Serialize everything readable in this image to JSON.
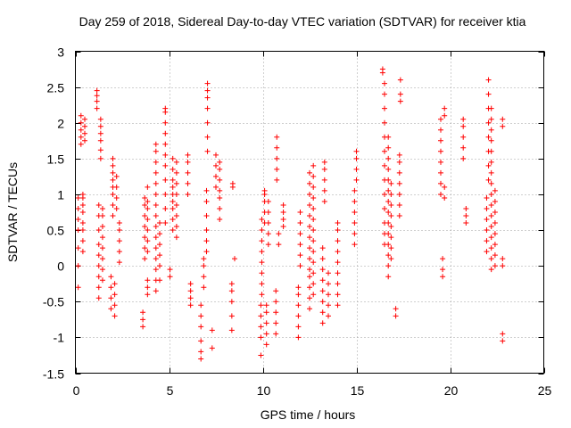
{
  "chart_data": {
    "type": "scatter",
    "title": "Day 259 of 2018, Sidereal Day-to-day VTEC variation (SDTVAR) for receiver ktia",
    "xlabel": "GPS time / hours",
    "ylabel": "SDTVAR / TECUs",
    "xlim": [
      0,
      25
    ],
    "ylim": [
      -1.5,
      3
    ],
    "xticks": [
      0,
      5,
      10,
      15,
      20,
      25
    ],
    "xtick_labels": [
      "0",
      "5",
      "10",
      "15",
      "20",
      "25"
    ],
    "yticks": [
      -1.5,
      -1,
      -0.5,
      0,
      0.5,
      1,
      1.5,
      2,
      2.5,
      3
    ],
    "ytick_labels": [
      "-1.5",
      "-1",
      "-0.5",
      "0",
      "0.5",
      "1",
      "1.5",
      "2",
      "2.5",
      "3"
    ],
    "grid": true,
    "marker": "+",
    "color": "#ff0000",
    "clusters": [
      {
        "x": 0.15,
        "y": [
          -0.3,
          0.0,
          0.25,
          0.5,
          0.65,
          0.8,
          0.95
        ]
      },
      {
        "x": 0.3,
        "y": [
          1.7,
          1.8,
          1.9,
          2.0,
          2.1
        ]
      },
      {
        "x": 0.4,
        "y": [
          0.2,
          0.35,
          0.5,
          0.6,
          0.75,
          0.85,
          0.95,
          1.0
        ]
      },
      {
        "x": 0.5,
        "y": [
          1.75,
          1.85,
          1.95,
          2.05
        ]
      },
      {
        "x": 1.15,
        "y": [
          2.2,
          2.3,
          2.38,
          2.45
        ]
      },
      {
        "x": 1.25,
        "y": [
          -0.45,
          -0.3,
          -0.15,
          0.0,
          0.15,
          0.3,
          0.5,
          0.7,
          0.85
        ]
      },
      {
        "x": 1.35,
        "y": [
          1.5,
          1.62,
          1.75,
          1.85,
          1.95,
          2.05
        ]
      },
      {
        "x": 1.45,
        "y": [
          -0.2,
          -0.05,
          0.1,
          0.25,
          0.4,
          0.55,
          0.7,
          0.8
        ]
      },
      {
        "x": 1.9,
        "y": [
          -0.6,
          -0.45,
          -0.3,
          -0.15
        ]
      },
      {
        "x": 2.0,
        "y": [
          0.7,
          0.85,
          1.0,
          1.1,
          1.2,
          1.3,
          1.4,
          1.5
        ]
      },
      {
        "x": 2.1,
        "y": [
          -0.7,
          -0.55,
          -0.4,
          -0.25
        ]
      },
      {
        "x": 2.2,
        "y": [
          0.8,
          0.95,
          1.1,
          1.25
        ]
      },
      {
        "x": 2.35,
        "y": [
          0.05,
          0.2,
          0.35,
          0.5,
          0.6
        ]
      },
      {
        "x": 3.6,
        "y": [
          -0.85,
          -0.75,
          -0.65
        ]
      },
      {
        "x": 3.7,
        "y": [
          0.1,
          0.25,
          0.4,
          0.55,
          0.7,
          0.85,
          0.95
        ]
      },
      {
        "x": 3.85,
        "y": [
          -0.4,
          -0.3,
          -0.2,
          0.2,
          0.35,
          0.5,
          0.65,
          0.8,
          0.9,
          1.1
        ]
      },
      {
        "x": 4.3,
        "y": [
          -0.35,
          -0.2,
          -0.05,
          0.1,
          0.25,
          0.4,
          0.55,
          0.7,
          0.85,
          1.0,
          1.15,
          1.3,
          1.45,
          1.6,
          1.7
        ]
      },
      {
        "x": 4.5,
        "y": [
          -0.2,
          0.0,
          0.15,
          0.3,
          0.45,
          0.6
        ]
      },
      {
        "x": 4.8,
        "y": [
          0.6,
          0.8,
          1.0,
          1.2,
          1.4,
          1.55,
          1.7,
          1.85,
          2.0,
          2.15,
          2.2
        ]
      },
      {
        "x": 5.05,
        "y": [
          -0.15,
          -0.05
        ]
      },
      {
        "x": 5.2,
        "y": [
          0.5,
          0.65,
          0.8,
          0.9,
          1.0,
          1.1,
          1.2,
          1.35,
          1.5
        ]
      },
      {
        "x": 5.4,
        "y": [
          0.4,
          0.55,
          0.7,
          0.85,
          1.0,
          1.15,
          1.3,
          1.45
        ]
      },
      {
        "x": 6.0,
        "y": [
          1.0,
          1.15,
          1.3,
          1.45,
          1.55
        ]
      },
      {
        "x": 6.15,
        "y": [
          -0.55,
          -0.45,
          -0.35,
          -0.25
        ]
      },
      {
        "x": 6.7,
        "y": [
          -1.3,
          -1.2,
          -1.05,
          -0.85,
          -0.7,
          -0.55
        ]
      },
      {
        "x": 6.85,
        "y": [
          -0.3,
          -0.15,
          0.0,
          0.1
        ]
      },
      {
        "x": 7.0,
        "y": [
          0.2,
          0.35,
          0.5,
          0.7,
          0.9,
          1.05
        ]
      },
      {
        "x": 7.05,
        "y": [
          1.6,
          1.8,
          2.0,
          2.2,
          2.35,
          2.45,
          2.55
        ]
      },
      {
        "x": 7.3,
        "y": [
          -1.15,
          -0.9
        ]
      },
      {
        "x": 7.5,
        "y": [
          1.1,
          1.25,
          1.4,
          1.55
        ]
      },
      {
        "x": 7.7,
        "y": [
          0.65,
          0.8,
          0.95,
          1.05,
          1.2,
          1.35,
          1.45
        ]
      },
      {
        "x": 8.35,
        "y": [
          -0.9,
          -0.7,
          -0.5,
          -0.35,
          -0.25
        ]
      },
      {
        "x": 8.4,
        "y": [
          1.1,
          1.15
        ]
      },
      {
        "x": 8.5,
        "y": [
          0.1
        ]
      },
      {
        "x": 9.9,
        "y": [
          -1.25,
          -1.0,
          -0.85,
          -0.7,
          -0.55
        ]
      },
      {
        "x": 9.95,
        "y": [
          -0.4,
          -0.25,
          -0.1,
          0.05,
          0.2,
          0.35,
          0.5,
          0.65
        ]
      },
      {
        "x": 10.1,
        "y": [
          0.6,
          0.75,
          0.9,
          1.0,
          1.05
        ]
      },
      {
        "x": 10.2,
        "y": [
          -1.1,
          -0.95,
          -0.8,
          -0.65,
          -0.55
        ]
      },
      {
        "x": 10.3,
        "y": [
          0.3,
          0.45,
          0.6,
          0.75,
          0.9
        ]
      },
      {
        "x": 10.7,
        "y": [
          -0.95,
          -0.8,
          -0.65,
          -0.5,
          -0.35
        ]
      },
      {
        "x": 10.75,
        "y": [
          1.2,
          1.35,
          1.5,
          1.65,
          1.8
        ]
      },
      {
        "x": 10.85,
        "y": [
          0.3,
          0.45
        ]
      },
      {
        "x": 11.1,
        "y": [
          0.55,
          0.65,
          0.75,
          0.85
        ]
      },
      {
        "x": 11.9,
        "y": [
          -1.0,
          -0.85,
          -0.7,
          -0.55,
          -0.4,
          -0.3
        ]
      },
      {
        "x": 12.0,
        "y": [
          0.0,
          0.15,
          0.3,
          0.45,
          0.6,
          0.75
        ]
      },
      {
        "x": 12.5,
        "y": [
          -0.6,
          -0.45,
          -0.3,
          -0.15,
          -0.05,
          0.1,
          0.25,
          0.4,
          0.55,
          0.7,
          0.85,
          1.0,
          1.15,
          1.3
        ]
      },
      {
        "x": 12.7,
        "y": [
          -0.4,
          -0.25,
          -0.1,
          0.05,
          0.2,
          0.35,
          0.5,
          0.65,
          0.8,
          0.95,
          1.1,
          1.25,
          1.4
        ]
      },
      {
        "x": 13.2,
        "y": [
          -0.8,
          -0.65,
          -0.5,
          -0.35,
          -0.2,
          -0.05,
          0.1,
          0.25
        ]
      },
      {
        "x": 13.3,
        "y": [
          0.9,
          1.05,
          1.2,
          1.35,
          1.45
        ]
      },
      {
        "x": 13.5,
        "y": [
          -0.7,
          -0.55,
          -0.4,
          -0.25,
          -0.1
        ]
      },
      {
        "x": 14.0,
        "y": [
          -0.55,
          -0.4,
          -0.25,
          -0.1,
          0.05,
          0.2,
          0.35,
          0.5,
          0.6
        ]
      },
      {
        "x": 14.9,
        "y": [
          0.3,
          0.45,
          0.6,
          0.75,
          0.9,
          1.05
        ]
      },
      {
        "x": 15.0,
        "y": [
          1.2,
          1.35,
          1.5,
          1.6
        ]
      },
      {
        "x": 16.4,
        "y": [
          2.7,
          2.75
        ]
      },
      {
        "x": 16.5,
        "y": [
          0.3,
          0.45,
          0.6,
          0.8,
          1.0,
          1.2,
          1.4,
          1.6,
          1.8,
          2.0,
          2.2,
          2.4,
          2.55
        ]
      },
      {
        "x": 16.7,
        "y": [
          -0.15,
          0.0,
          0.15,
          0.3,
          0.45,
          0.6,
          0.75,
          0.9,
          1.05,
          1.2,
          1.35,
          1.5,
          1.65,
          1.8
        ]
      },
      {
        "x": 16.85,
        "y": [
          0.1,
          0.25,
          0.4,
          0.55,
          0.7,
          0.85,
          1.0,
          1.15
        ]
      },
      {
        "x": 17.1,
        "y": [
          -0.7,
          -0.6
        ]
      },
      {
        "x": 17.3,
        "y": [
          0.7,
          0.85,
          1.0,
          1.15,
          1.3,
          1.45,
          1.55
        ]
      },
      {
        "x": 17.35,
        "y": [
          2.3,
          2.4,
          2.6
        ]
      },
      {
        "x": 19.5,
        "y": [
          1.0,
          1.15,
          1.3,
          1.45,
          1.6,
          1.75,
          1.9,
          2.05
        ]
      },
      {
        "x": 19.6,
        "y": [
          -0.15,
          -0.05,
          0.1
        ]
      },
      {
        "x": 19.7,
        "y": [
          0.95,
          1.1,
          2.1,
          2.2
        ]
      },
      {
        "x": 20.7,
        "y": [
          1.5,
          1.65,
          1.8,
          1.95,
          2.05
        ]
      },
      {
        "x": 20.85,
        "y": [
          0.6,
          0.7,
          0.8
        ]
      },
      {
        "x": 21.95,
        "y": [
          0.2,
          0.35,
          0.5,
          0.65,
          0.8,
          0.95
        ]
      },
      {
        "x": 22.05,
        "y": [
          1.2,
          1.4,
          1.6,
          1.8,
          2.0,
          2.2,
          2.4,
          2.6
        ]
      },
      {
        "x": 22.2,
        "y": [
          -0.05,
          0.1,
          0.25,
          0.4,
          0.55,
          0.7,
          0.85,
          1.0,
          1.15,
          1.3,
          1.45,
          1.6,
          1.75,
          1.9,
          2.05,
          2.2
        ]
      },
      {
        "x": 22.4,
        "y": [
          0.0,
          0.15,
          0.3,
          0.45,
          0.6,
          0.75,
          0.9,
          1.05
        ]
      },
      {
        "x": 22.8,
        "y": [
          -1.05,
          -0.95,
          0.0,
          0.1,
          1.95,
          2.05
        ]
      }
    ]
  }
}
